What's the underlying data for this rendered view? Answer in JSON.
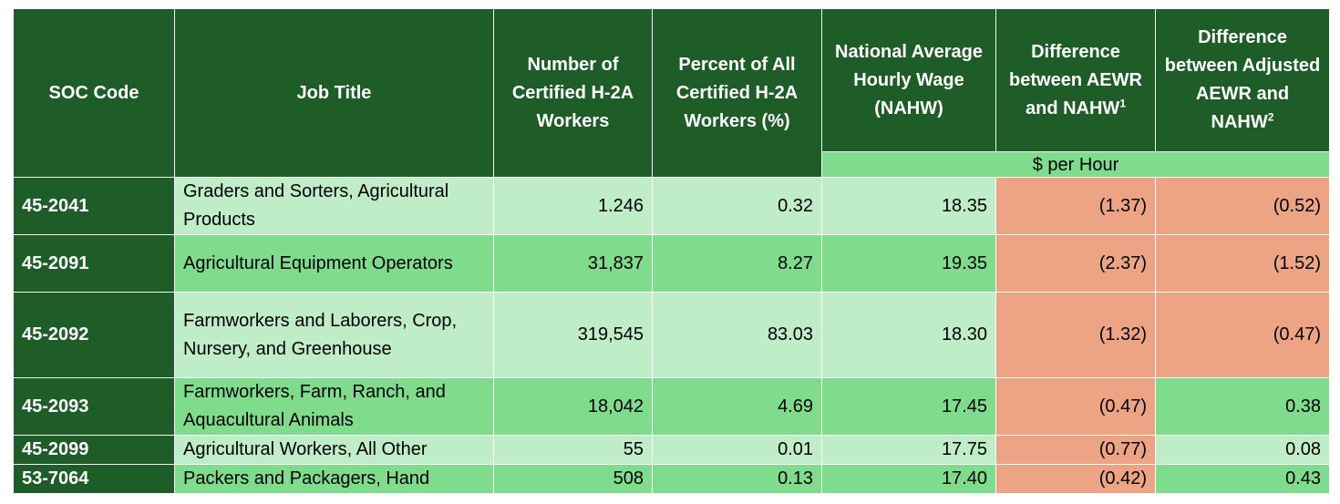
{
  "table": {
    "headers": {
      "soc_code": "SOC Code",
      "job_title": "Job Title",
      "num_workers": "Number of Certified H-2A Workers",
      "percent_workers": "Percent of All Certified H-2A Workers (%)",
      "nahw": "National Average Hourly Wage (NAHW)",
      "diff_aewr": "Difference between AEWR and NAHW",
      "diff_aewr_sup": "1",
      "diff_adjusted": "Difference between Adjusted AEWR and NAHW",
      "diff_adjusted_sup": "2",
      "unit": "$ per Hour"
    },
    "rows": [
      {
        "soc": "45-2041",
        "title": "Graders and Sorters, Agricultural Products",
        "workers": "1.246",
        "percent": "0.32",
        "nahw": "18.35",
        "diff_aewr": "(1.37)",
        "diff_adjusted": "(0.52)"
      },
      {
        "soc": "45-2091",
        "title": "Agricultural Equipment Operators",
        "workers": "31,837",
        "percent": "8.27",
        "nahw": "19.35",
        "diff_aewr": "(2.37)",
        "diff_adjusted": "(1.52)"
      },
      {
        "soc": "45-2092",
        "title": "Farmworkers and Laborers, Crop, Nursery, and Greenhouse",
        "workers": "319,545",
        "percent": "83.03",
        "nahw": "18.30",
        "diff_aewr": "(1.32)",
        "diff_adjusted": "(0.47)"
      },
      {
        "soc": "45-2093",
        "title": "Farmworkers, Farm, Ranch, and Aquacultural Animals",
        "workers": "18,042",
        "percent": "4.69",
        "nahw": "17.45",
        "diff_aewr": "(0.47)",
        "diff_adjusted": "0.38"
      },
      {
        "soc": "45-2099",
        "title": "Agricultural Workers, All Other",
        "workers": "55",
        "percent": "0.01",
        "nahw": "17.75",
        "diff_aewr": "(0.77)",
        "diff_adjusted": "0.08"
      },
      {
        "soc": "53-7064",
        "title": "Packers and Packagers, Hand",
        "workers": "508",
        "percent": "0.13",
        "nahw": "17.40",
        "diff_aewr": "(0.42)",
        "diff_adjusted": "0.43"
      }
    ]
  },
  "colors": {
    "header_green": "#1e5c28",
    "row_light_green": "#bfedc7",
    "row_medium_green": "#7fdc8d",
    "negative_salmon": "#eda485"
  }
}
